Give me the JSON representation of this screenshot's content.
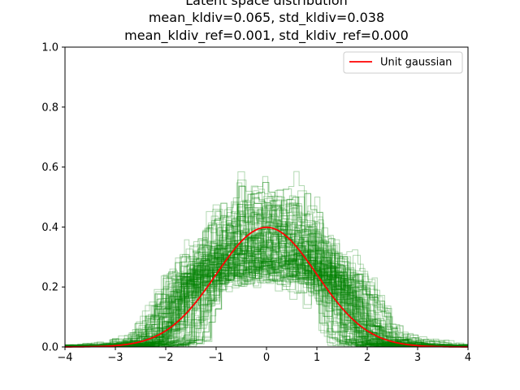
{
  "chart_data": {
    "type": "line",
    "title_lines": [
      "Latent space distribution",
      "mean_kldiv=0.065, std_kldiv=0.038",
      "mean_kldiv_ref=0.001, std_kldiv_ref=0.000"
    ],
    "xlabel": "",
    "ylabel": "",
    "xlim": [
      -4,
      4
    ],
    "ylim": [
      0,
      1.0
    ],
    "xticks": [
      -4,
      -3,
      -2,
      -1,
      0,
      1,
      2,
      3,
      4
    ],
    "xtick_labels": [
      "−4",
      "−3",
      "−2",
      "−1",
      "0",
      "1",
      "2",
      "3",
      "4"
    ],
    "yticks": [
      0.0,
      0.2,
      0.4,
      0.6,
      0.8,
      1.0
    ],
    "ytick_labels": [
      "0.0",
      "0.2",
      "0.4",
      "0.6",
      "0.8",
      "1.0"
    ],
    "grid": false,
    "legend": {
      "placement": "top-right",
      "entries": [
        {
          "name": "Unit gaussian",
          "color": "#ff0000"
        }
      ]
    },
    "series": [
      {
        "name": "Unit gaussian",
        "kind": "line",
        "color": "#ff0000",
        "x": [
          -4,
          -3.5,
          -3,
          -2.5,
          -2,
          -1.5,
          -1,
          -0.5,
          0,
          0.5,
          1,
          1.5,
          2,
          2.5,
          3,
          3.5,
          4
        ],
        "y": [
          0.0001,
          0.0009,
          0.0044,
          0.0175,
          0.054,
          0.1295,
          0.242,
          0.352,
          0.399,
          0.352,
          0.242,
          0.1295,
          0.054,
          0.0175,
          0.0044,
          0.0009,
          0.0001
        ]
      },
      {
        "kind": "step-histograms",
        "count": 128,
        "color": "#008000",
        "alpha": 0.3,
        "x": [
          -4,
          -3.5,
          -3,
          -2.5,
          -2,
          -1.75,
          -1.5,
          -1,
          -0.5,
          0,
          0.5,
          1,
          1.5,
          1.75,
          2,
          2.5,
          3,
          3.5,
          4
        ],
        "y_typical": [
          0.0,
          0.0,
          0.0,
          0.005,
          0.02,
          0.1,
          0.25,
          0.3,
          0.32,
          0.33,
          0.32,
          0.3,
          0.25,
          0.1,
          0.02,
          0.005,
          0.0,
          0.0,
          0.0
        ],
        "y_min": [
          0.0,
          0.0,
          0.0,
          0.0,
          0.0,
          0.01,
          0.05,
          0.15,
          0.22,
          0.26,
          0.22,
          0.15,
          0.05,
          0.01,
          0.0,
          0.0,
          0.0,
          0.0,
          0.0
        ],
        "y_max": [
          0.0,
          0.0,
          0.01,
          0.03,
          0.1,
          0.25,
          0.35,
          0.4,
          0.45,
          0.47,
          0.45,
          0.4,
          0.35,
          0.25,
          0.1,
          0.05,
          0.02,
          0.005,
          0.0
        ]
      }
    ],
    "colors": {
      "axes": "#000000",
      "background": "#ffffff",
      "legend_border": "#cccccc"
    }
  }
}
